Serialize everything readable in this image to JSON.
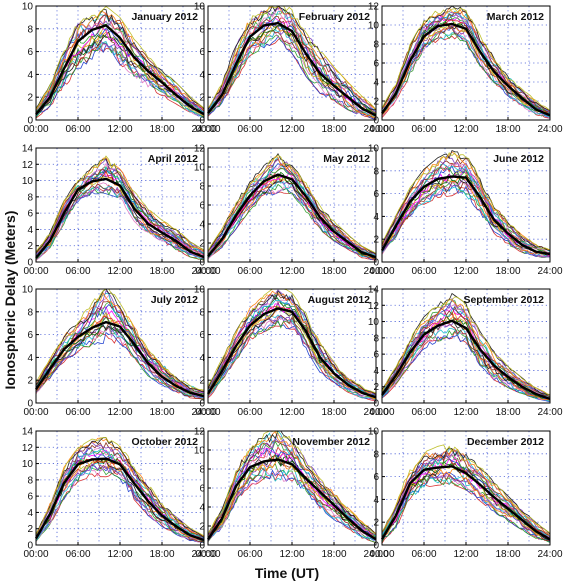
{
  "figure": {
    "ylabel": "Ionospheric Delay (Meters)",
    "xlabel": "Time (UT)",
    "xticks": [
      "00:00",
      "06:00",
      "12:00",
      "18:00",
      "24:00"
    ]
  },
  "chart_data": [
    {
      "type": "line",
      "title": "January 2012",
      "x": [
        0,
        2,
        4,
        6,
        8,
        10,
        12,
        14,
        16,
        18,
        20,
        22,
        24
      ],
      "ylim": [
        0,
        10
      ],
      "yticks": [
        0,
        2,
        4,
        6,
        8,
        10
      ],
      "series": [
        {
          "values": [
            0.5,
            2.0,
            4.5,
            6.9,
            7.9,
            8.3,
            7.2,
            5.5,
            4.3,
            3.3,
            2.2,
            1.2,
            0.5
          ]
        }
      ],
      "range_low": [
        0.2,
        1.2,
        3.0,
        4.5,
        5.5,
        6.0,
        5.0,
        4.0,
        3.0,
        2.2,
        1.5,
        0.7,
        0.2
      ],
      "range_high": [
        1.0,
        3.0,
        6.0,
        8.5,
        9.0,
        9.8,
        8.8,
        7.0,
        5.5,
        4.3,
        3.2,
        2.0,
        1.0
      ]
    },
    {
      "type": "line",
      "title": "February 2012",
      "x": [
        0,
        2,
        4,
        6,
        8,
        10,
        12,
        14,
        16,
        18,
        20,
        22,
        24
      ],
      "ylim": [
        0,
        10
      ],
      "yticks": [
        0,
        2,
        4,
        6,
        8,
        10
      ],
      "series": [
        {
          "values": [
            0.6,
            2.2,
            4.9,
            7.3,
            8.3,
            8.5,
            7.8,
            5.8,
            4.1,
            3.0,
            2.0,
            1.0,
            0.4
          ]
        }
      ],
      "range_low": [
        0.3,
        1.5,
        3.5,
        5.8,
        6.5,
        7.0,
        6.0,
        4.0,
        2.5,
        1.8,
        1.0,
        0.4,
        0.1
      ],
      "range_high": [
        1.0,
        3.2,
        6.5,
        8.8,
        9.8,
        10.5,
        9.5,
        7.5,
        6.0,
        4.5,
        3.2,
        2.0,
        1.0
      ]
    },
    {
      "type": "line",
      "title": "March 2012",
      "x": [
        0,
        2,
        4,
        6,
        8,
        10,
        12,
        14,
        16,
        18,
        20,
        22,
        24
      ],
      "ylim": [
        0,
        12
      ],
      "yticks": [
        0,
        2,
        4,
        6,
        8,
        10,
        12
      ],
      "series": [
        {
          "values": [
            0.7,
            2.8,
            6.2,
            8.8,
            9.9,
            10.1,
            9.6,
            7.2,
            5.1,
            3.6,
            2.3,
            1.1,
            0.5
          ]
        }
      ],
      "range_low": [
        0.3,
        2.0,
        4.8,
        7.5,
        8.5,
        8.8,
        8.0,
        5.8,
        4.0,
        2.6,
        1.5,
        0.6,
        0.2
      ],
      "range_high": [
        1.3,
        3.8,
        7.8,
        10.5,
        11.5,
        12.0,
        11.5,
        8.8,
        6.5,
        4.5,
        3.2,
        2.0,
        1.0
      ]
    },
    {
      "type": "line",
      "title": "April 2012",
      "x": [
        0,
        2,
        4,
        6,
        8,
        10,
        12,
        14,
        16,
        18,
        20,
        22,
        24
      ],
      "ylim": [
        0,
        14
      ],
      "yticks": [
        0,
        2,
        4,
        6,
        8,
        10,
        12,
        14
      ],
      "series": [
        {
          "values": [
            0.5,
            2.6,
            6.0,
            8.9,
            9.9,
            10.2,
            9.4,
            6.6,
            4.7,
            3.6,
            2.6,
            1.3,
            0.6
          ]
        }
      ],
      "range_low": [
        0.2,
        1.8,
        4.8,
        7.5,
        8.5,
        8.6,
        8.0,
        5.2,
        3.4,
        2.5,
        1.6,
        0.7,
        0.2
      ],
      "range_high": [
        1.2,
        3.6,
        7.4,
        10.0,
        11.5,
        12.8,
        11.5,
        8.6,
        6.4,
        5.0,
        4.0,
        2.4,
        1.4
      ]
    },
    {
      "type": "line",
      "title": "May 2012",
      "x": [
        0,
        2,
        4,
        6,
        8,
        10,
        12,
        14,
        16,
        18,
        20,
        22,
        24
      ],
      "ylim": [
        0,
        12
      ],
      "yticks": [
        0,
        2,
        4,
        6,
        8,
        10,
        12
      ],
      "series": [
        {
          "values": [
            0.6,
            2.4,
            4.9,
            7.0,
            8.5,
            9.2,
            8.7,
            6.9,
            4.7,
            3.2,
            2.1,
            1.0,
            0.5
          ]
        }
      ],
      "range_low": [
        0.3,
        1.6,
        3.6,
        5.6,
        6.8,
        7.5,
        7.3,
        5.4,
        3.5,
        2.3,
        1.4,
        0.5,
        0.2
      ],
      "range_high": [
        1.2,
        3.4,
        6.2,
        8.5,
        10.0,
        11.2,
        10.2,
        8.2,
        5.8,
        4.2,
        2.8,
        1.6,
        0.9
      ]
    },
    {
      "type": "line",
      "title": "June 2012",
      "x": [
        0,
        2,
        4,
        6,
        8,
        10,
        12,
        14,
        16,
        18,
        20,
        22,
        24
      ],
      "ylim": [
        0,
        10
      ],
      "yticks": [
        0,
        2,
        4,
        6,
        8,
        10
      ],
      "series": [
        {
          "values": [
            1.0,
            3.2,
            5.3,
            6.6,
            7.3,
            7.5,
            7.4,
            5.7,
            3.7,
            2.5,
            1.5,
            0.9,
            0.7
          ]
        }
      ],
      "range_low": [
        0.6,
        2.2,
        4.0,
        5.2,
        5.8,
        6.0,
        6.0,
        4.4,
        2.6,
        1.6,
        0.9,
        0.5,
        0.4
      ],
      "range_high": [
        1.6,
        4.0,
        6.4,
        8.0,
        9.0,
        9.6,
        9.3,
        7.4,
        5.0,
        3.5,
        2.3,
        1.5,
        1.1
      ]
    },
    {
      "type": "line",
      "title": "July 2012",
      "x": [
        0,
        2,
        4,
        6,
        8,
        10,
        12,
        14,
        16,
        18,
        20,
        22,
        24
      ],
      "ylim": [
        0,
        10
      ],
      "yticks": [
        0,
        2,
        4,
        6,
        8,
        10
      ],
      "series": [
        {
          "values": [
            1.2,
            3.0,
            4.7,
            5.8,
            6.6,
            7.1,
            6.7,
            5.2,
            3.5,
            2.3,
            1.5,
            0.9,
            0.6
          ]
        }
      ],
      "range_low": [
        0.8,
        2.2,
        3.6,
        4.6,
        5.2,
        5.5,
        5.4,
        4.0,
        2.5,
        1.6,
        1.0,
        0.5,
        0.3
      ],
      "range_high": [
        1.8,
        3.8,
        5.8,
        7.2,
        8.6,
        10.4,
        8.6,
        6.6,
        4.8,
        3.4,
        2.3,
        1.5,
        1.1
      ]
    },
    {
      "type": "line",
      "title": "August 2012",
      "x": [
        0,
        2,
        4,
        6,
        8,
        10,
        12,
        14,
        16,
        18,
        20,
        22,
        24
      ],
      "ylim": [
        0,
        10
      ],
      "yticks": [
        0,
        2,
        4,
        6,
        8,
        10
      ],
      "series": [
        {
          "values": [
            0.8,
            2.8,
            5.0,
            6.8,
            7.8,
            8.3,
            8.0,
            6.3,
            4.0,
            2.6,
            1.6,
            0.9,
            0.5
          ]
        }
      ],
      "range_low": [
        0.4,
        2.0,
        3.8,
        5.6,
        6.4,
        6.8,
        6.6,
        4.8,
        2.8,
        1.8,
        1.0,
        0.5,
        0.2
      ],
      "range_high": [
        1.4,
        3.8,
        6.2,
        8.2,
        9.3,
        10.2,
        9.5,
        7.8,
        5.2,
        3.5,
        2.3,
        1.4,
        0.9
      ]
    },
    {
      "type": "line",
      "title": "September 2012",
      "x": [
        0,
        2,
        4,
        6,
        8,
        10,
        12,
        14,
        16,
        18,
        20,
        22,
        24
      ],
      "ylim": [
        0,
        14
      ],
      "yticks": [
        0,
        2,
        4,
        6,
        8,
        10,
        12,
        14
      ],
      "series": [
        {
          "values": [
            1.0,
            3.4,
            6.2,
            8.4,
            9.5,
            10.1,
            9.2,
            6.6,
            4.6,
            3.2,
            2.0,
            1.1,
            0.5
          ]
        }
      ],
      "range_low": [
        0.5,
        2.4,
        4.8,
        6.8,
        7.8,
        8.2,
        7.5,
        4.8,
        3.0,
        2.0,
        1.2,
        0.6,
        0.2
      ],
      "range_high": [
        1.6,
        4.4,
        7.8,
        10.4,
        12.0,
        13.2,
        12.0,
        8.6,
        6.2,
        4.4,
        3.0,
        1.8,
        1.0
      ]
    },
    {
      "type": "line",
      "title": "October 2012",
      "x": [
        0,
        2,
        4,
        6,
        8,
        10,
        12,
        14,
        16,
        18,
        20,
        22,
        24
      ],
      "ylim": [
        0,
        14
      ],
      "yticks": [
        0,
        2,
        4,
        6,
        8,
        10,
        12,
        14
      ],
      "series": [
        {
          "values": [
            0.8,
            3.8,
            7.6,
            9.9,
            10.5,
            10.6,
            9.9,
            7.6,
            5.4,
            3.6,
            2.3,
            1.2,
            0.6
          ]
        }
      ],
      "range_low": [
        0.4,
        2.6,
        5.8,
        8.0,
        8.6,
        8.6,
        8.2,
        5.8,
        3.8,
        2.4,
        1.4,
        0.6,
        0.3
      ],
      "range_high": [
        1.4,
        5.0,
        9.4,
        11.8,
        12.8,
        13.0,
        12.0,
        9.8,
        7.4,
        5.0,
        3.4,
        2.0,
        1.1
      ]
    },
    {
      "type": "line",
      "title": "November 2012",
      "x": [
        0,
        2,
        4,
        6,
        8,
        10,
        12,
        14,
        16,
        18,
        20,
        22,
        24
      ],
      "ylim": [
        0,
        12
      ],
      "yticks": [
        0,
        2,
        4,
        6,
        8,
        10,
        12
      ],
      "series": [
        {
          "values": [
            0.6,
            2.8,
            6.2,
            8.2,
            8.8,
            9.0,
            8.5,
            7.0,
            5.6,
            4.2,
            2.8,
            1.5,
            0.6
          ]
        }
      ],
      "range_low": [
        0.3,
        1.8,
        4.6,
        6.4,
        6.9,
        7.0,
        6.8,
        5.4,
        4.0,
        2.8,
        1.8,
        0.8,
        0.3
      ],
      "range_high": [
        1.2,
        3.8,
        7.8,
        10.2,
        11.5,
        12.2,
        11.0,
        8.8,
        7.0,
        5.4,
        3.8,
        2.4,
        1.2
      ]
    },
    {
      "type": "line",
      "title": "December 2012",
      "x": [
        0,
        2,
        4,
        6,
        8,
        10,
        12,
        14,
        16,
        18,
        20,
        22,
        24
      ],
      "ylim": [
        0,
        10
      ],
      "yticks": [
        0,
        2,
        4,
        6,
        8,
        10
      ],
      "series": [
        {
          "values": [
            0.5,
            2.6,
            5.4,
            6.6,
            6.8,
            6.9,
            6.3,
            5.3,
            4.2,
            3.2,
            2.2,
            1.2,
            0.5
          ]
        }
      ],
      "range_low": [
        0.2,
        1.6,
        4.0,
        5.2,
        5.4,
        5.5,
        5.0,
        4.0,
        3.0,
        2.2,
        1.4,
        0.6,
        0.2
      ],
      "range_high": [
        1.2,
        3.6,
        6.8,
        8.0,
        8.5,
        8.8,
        8.0,
        6.8,
        5.4,
        4.2,
        3.0,
        1.9,
        1.0
      ]
    }
  ]
}
